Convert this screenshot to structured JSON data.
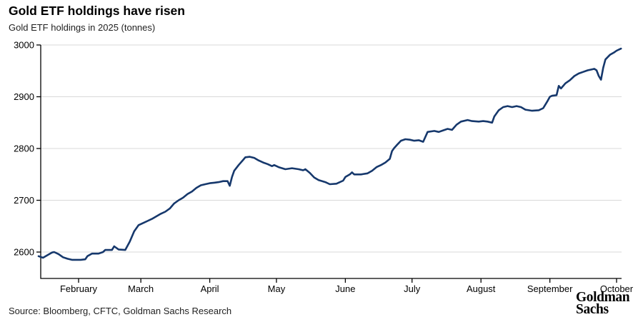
{
  "header": {
    "title": "Gold ETF holdings have risen",
    "subtitle": "Gold ETF holdings in 2025 (tonnes)"
  },
  "footer": {
    "source": "Source: Bloomberg, CFTC, Goldman Sachs Research",
    "logo_line1": "Goldman",
    "logo_line2": "Sachs"
  },
  "colors": {
    "line": "#16386c",
    "grid": "#d9d9d9",
    "axis": "#000000",
    "tick_text": "#000000"
  },
  "chart_data": {
    "type": "line",
    "title": "Gold ETF holdings have risen",
    "subtitle": "Gold ETF holdings in 2025 (tonnes)",
    "xlabel": "",
    "ylabel": "",
    "ylim": [
      2549,
      3000
    ],
    "yticks": [
      2600,
      2700,
      2800,
      2900,
      3000
    ],
    "xticks": [
      {
        "date": "2025-02-01",
        "label": "February"
      },
      {
        "date": "2025-03-01",
        "label": "March"
      },
      {
        "date": "2025-04-01",
        "label": "April"
      },
      {
        "date": "2025-05-01",
        "label": "May"
      },
      {
        "date": "2025-06-01",
        "label": "June"
      },
      {
        "date": "2025-07-01",
        "label": "July"
      },
      {
        "date": "2025-08-01",
        "label": "August"
      },
      {
        "date": "2025-09-01",
        "label": "September"
      },
      {
        "date": "2025-10-01",
        "label": "October"
      }
    ],
    "grid": "horizontal",
    "legend": "none",
    "series": [
      {
        "name": "Gold ETF holdings (tonnes)",
        "points": [
          [
            "2025-01-14",
            2592
          ],
          [
            "2025-01-16",
            2589
          ],
          [
            "2025-01-18",
            2594
          ],
          [
            "2025-01-20",
            2599
          ],
          [
            "2025-01-21",
            2600
          ],
          [
            "2025-01-23",
            2596
          ],
          [
            "2025-01-25",
            2590
          ],
          [
            "2025-01-27",
            2587
          ],
          [
            "2025-01-29",
            2585
          ],
          [
            "2025-02-02",
            2585
          ],
          [
            "2025-02-04",
            2586
          ],
          [
            "2025-02-05",
            2592
          ],
          [
            "2025-02-07",
            2597
          ],
          [
            "2025-02-10",
            2597
          ],
          [
            "2025-02-12",
            2600
          ],
          [
            "2025-02-13",
            2604
          ],
          [
            "2025-02-16",
            2604
          ],
          [
            "2025-02-17",
            2611
          ],
          [
            "2025-02-19",
            2605
          ],
          [
            "2025-02-22",
            2604
          ],
          [
            "2025-02-24",
            2620
          ],
          [
            "2025-02-26",
            2640
          ],
          [
            "2025-02-28",
            2652
          ],
          [
            "2025-03-02",
            2656
          ],
          [
            "2025-03-04",
            2660
          ],
          [
            "2025-03-06",
            2664
          ],
          [
            "2025-03-08",
            2669
          ],
          [
            "2025-03-10",
            2674
          ],
          [
            "2025-03-12",
            2678
          ],
          [
            "2025-03-14",
            2684
          ],
          [
            "2025-03-16",
            2694
          ],
          [
            "2025-03-18",
            2700
          ],
          [
            "2025-03-20",
            2705
          ],
          [
            "2025-03-22",
            2712
          ],
          [
            "2025-03-24",
            2717
          ],
          [
            "2025-03-26",
            2724
          ],
          [
            "2025-03-28",
            2729
          ],
          [
            "2025-03-30",
            2731
          ],
          [
            "2025-04-01",
            2733
          ],
          [
            "2025-04-03",
            2734
          ],
          [
            "2025-04-05",
            2735
          ],
          [
            "2025-04-07",
            2737
          ],
          [
            "2025-04-09",
            2737
          ],
          [
            "2025-04-10",
            2728
          ],
          [
            "2025-04-11",
            2745
          ],
          [
            "2025-04-12",
            2757
          ],
          [
            "2025-04-14",
            2768
          ],
          [
            "2025-04-16",
            2778
          ],
          [
            "2025-04-17",
            2783
          ],
          [
            "2025-04-19",
            2784
          ],
          [
            "2025-04-21",
            2782
          ],
          [
            "2025-04-23",
            2777
          ],
          [
            "2025-04-25",
            2773
          ],
          [
            "2025-04-27",
            2770
          ],
          [
            "2025-04-29",
            2766
          ],
          [
            "2025-04-30",
            2768
          ],
          [
            "2025-05-02",
            2764
          ],
          [
            "2025-05-05",
            2760
          ],
          [
            "2025-05-08",
            2762
          ],
          [
            "2025-05-11",
            2760
          ],
          [
            "2025-05-13",
            2758
          ],
          [
            "2025-05-14",
            2760
          ],
          [
            "2025-05-16",
            2753
          ],
          [
            "2025-05-18",
            2744
          ],
          [
            "2025-05-20",
            2739
          ],
          [
            "2025-05-23",
            2735
          ],
          [
            "2025-05-25",
            2731
          ],
          [
            "2025-05-28",
            2732
          ],
          [
            "2025-05-31",
            2738
          ],
          [
            "2025-06-01",
            2745
          ],
          [
            "2025-06-03",
            2750
          ],
          [
            "2025-06-04",
            2754
          ],
          [
            "2025-06-05",
            2750
          ],
          [
            "2025-06-08",
            2750
          ],
          [
            "2025-06-11",
            2752
          ],
          [
            "2025-06-13",
            2757
          ],
          [
            "2025-06-15",
            2764
          ],
          [
            "2025-06-17",
            2768
          ],
          [
            "2025-06-19",
            2773
          ],
          [
            "2025-06-21",
            2780
          ],
          [
            "2025-06-22",
            2795
          ],
          [
            "2025-06-23",
            2801
          ],
          [
            "2025-06-24",
            2806
          ],
          [
            "2025-06-26",
            2815
          ],
          [
            "2025-06-28",
            2818
          ],
          [
            "2025-06-30",
            2817
          ],
          [
            "2025-07-02",
            2815
          ],
          [
            "2025-07-04",
            2816
          ],
          [
            "2025-07-06",
            2813
          ],
          [
            "2025-07-08",
            2832
          ],
          [
            "2025-07-11",
            2834
          ],
          [
            "2025-07-13",
            2832
          ],
          [
            "2025-07-15",
            2835
          ],
          [
            "2025-07-17",
            2838
          ],
          [
            "2025-07-19",
            2836
          ],
          [
            "2025-07-21",
            2846
          ],
          [
            "2025-07-23",
            2852
          ],
          [
            "2025-07-26",
            2855
          ],
          [
            "2025-07-28",
            2853
          ],
          [
            "2025-07-31",
            2852
          ],
          [
            "2025-08-02",
            2853
          ],
          [
            "2025-08-04",
            2852
          ],
          [
            "2025-08-06",
            2850
          ],
          [
            "2025-08-07",
            2862
          ],
          [
            "2025-08-09",
            2874
          ],
          [
            "2025-08-11",
            2880
          ],
          [
            "2025-08-13",
            2882
          ],
          [
            "2025-08-15",
            2880
          ],
          [
            "2025-08-17",
            2882
          ],
          [
            "2025-08-19",
            2880
          ],
          [
            "2025-08-21",
            2875
          ],
          [
            "2025-08-24",
            2873
          ],
          [
            "2025-08-27",
            2874
          ],
          [
            "2025-08-29",
            2878
          ],
          [
            "2025-08-31",
            2892
          ],
          [
            "2025-09-01",
            2900
          ],
          [
            "2025-09-02",
            2902
          ],
          [
            "2025-09-04",
            2903
          ],
          [
            "2025-09-05",
            2921
          ],
          [
            "2025-09-06",
            2916
          ],
          [
            "2025-09-08",
            2926
          ],
          [
            "2025-09-10",
            2932
          ],
          [
            "2025-09-12",
            2940
          ],
          [
            "2025-09-14",
            2945
          ],
          [
            "2025-09-16",
            2948
          ],
          [
            "2025-09-18",
            2951
          ],
          [
            "2025-09-20",
            2953
          ],
          [
            "2025-09-21",
            2954
          ],
          [
            "2025-09-22",
            2951
          ],
          [
            "2025-09-23",
            2940
          ],
          [
            "2025-09-24",
            2933
          ],
          [
            "2025-09-25",
            2956
          ],
          [
            "2025-09-26",
            2972
          ],
          [
            "2025-09-28",
            2981
          ],
          [
            "2025-09-30",
            2986
          ],
          [
            "2025-10-01",
            2989
          ],
          [
            "2025-10-03",
            2993
          ]
        ]
      }
    ]
  }
}
